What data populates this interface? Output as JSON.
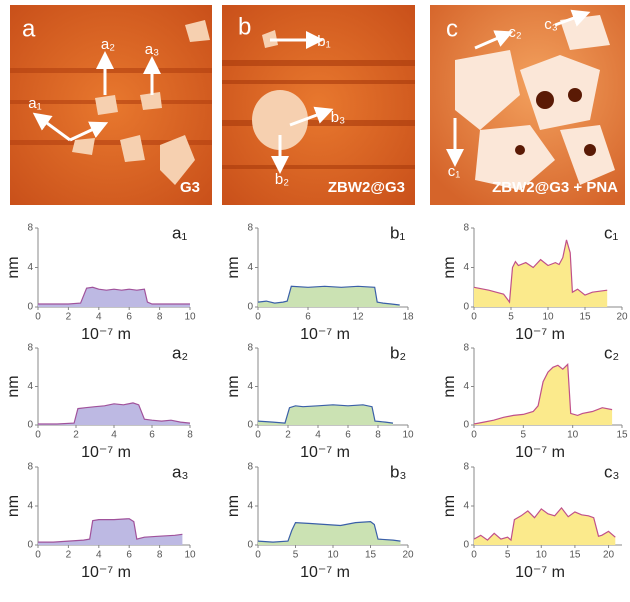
{
  "images": [
    {
      "panel": "a",
      "caption": "G3",
      "arrows": [
        "a₁",
        "a₂",
        "a₃"
      ]
    },
    {
      "panel": "b",
      "caption": "ZBW2@G3",
      "arrows": [
        "b₁",
        "b₂",
        "b₃"
      ]
    },
    {
      "panel": "c",
      "caption": "ZBW2@G3 + PNA",
      "arrows": [
        "c₁",
        "c₂",
        "c₃"
      ]
    }
  ],
  "chart_data": [
    {
      "type": "area",
      "title": "a₁",
      "xlabel": "10⁻⁷ m",
      "ylabel": "nm",
      "color": "#a0529b",
      "fill": "#bdb9e3",
      "x": [
        0,
        1,
        2,
        2.8,
        3.2,
        3.6,
        4,
        4.5,
        5,
        5.5,
        6,
        6.5,
        7,
        7.2,
        7.5,
        8,
        9,
        10
      ],
      "values": [
        0.3,
        0.3,
        0.3,
        0.4,
        1.9,
        2.0,
        1.8,
        1.7,
        1.8,
        1.7,
        1.8,
        1.7,
        1.8,
        0.5,
        0.3,
        0.3,
        0.3,
        0.3
      ],
      "xlim": [
        0,
        10
      ],
      "xticks": [
        0,
        2,
        4,
        6,
        8,
        10
      ],
      "ylim": [
        0,
        8
      ],
      "yticks": [
        0,
        4,
        8
      ]
    },
    {
      "type": "area",
      "title": "b₁",
      "xlabel": "10⁻⁷ m",
      "ylabel": "nm",
      "color": "#3a5fa8",
      "fill": "#cbe2b3",
      "x": [
        0,
        1,
        2,
        3,
        3.5,
        4,
        6,
        8,
        10,
        12,
        14,
        14.3,
        15,
        16,
        17
      ],
      "values": [
        0.5,
        0.6,
        0.4,
        0.5,
        0.6,
        2.1,
        2.0,
        2.1,
        2.0,
        2.1,
        2.0,
        0.5,
        0.4,
        0.3,
        0.2
      ],
      "xlim": [
        0,
        18
      ],
      "xticks": [
        0,
        6,
        12,
        18
      ],
      "ylim": [
        0,
        8
      ],
      "yticks": [
        0,
        4,
        8
      ]
    },
    {
      "type": "area",
      "title": "c₁",
      "xlabel": "10⁻⁷ m",
      "ylabel": "nm",
      "color": "#c0508a",
      "fill": "#fbea8c",
      "x": [
        0,
        2,
        3,
        4,
        4.8,
        5.2,
        5.6,
        6,
        7,
        8,
        9,
        10,
        11,
        11.5,
        12,
        12.5,
        13,
        13.3,
        14,
        15,
        16,
        17,
        18
      ],
      "values": [
        2.0,
        1.7,
        1.5,
        1.3,
        0.5,
        4.0,
        4.6,
        4.2,
        4.5,
        4.0,
        4.8,
        4.2,
        4.5,
        4.3,
        5.0,
        6.8,
        5.5,
        1.5,
        1.8,
        1.2,
        1.5,
        1.6,
        1.7
      ],
      "xlim": [
        0,
        20
      ],
      "xticks": [
        0,
        5,
        10,
        15,
        20
      ],
      "ylim": [
        0,
        8
      ],
      "yticks": [
        0,
        4,
        8
      ]
    },
    {
      "type": "area",
      "title": "a₂",
      "xlabel": "10⁻⁷ m",
      "ylabel": "nm",
      "color": "#a0529b",
      "fill": "#bdb9e3",
      "x": [
        0,
        1,
        1.9,
        2.1,
        2.5,
        3,
        3.5,
        4,
        4.5,
        5,
        5.3,
        5.6,
        6,
        6.5,
        7,
        7.5,
        8
      ],
      "values": [
        0.1,
        0.1,
        0.2,
        1.7,
        1.8,
        1.9,
        2.0,
        2.2,
        2.1,
        2.3,
        2.1,
        0.6,
        0.5,
        0.4,
        0.5,
        0.3,
        0.2
      ],
      "xlim": [
        0,
        8
      ],
      "xticks": [
        0,
        2,
        4,
        6,
        8
      ],
      "ylim": [
        0,
        8
      ],
      "yticks": [
        0,
        4,
        8
      ]
    },
    {
      "type": "area",
      "title": "b₂",
      "xlabel": "10⁻⁷ m",
      "ylabel": "nm",
      "color": "#3a5fa8",
      "fill": "#cbe2b3",
      "x": [
        0,
        1,
        1.8,
        2.1,
        2.5,
        3,
        4,
        5,
        6,
        7,
        7.6,
        7.8,
        8.5,
        9
      ],
      "values": [
        0.4,
        0.3,
        0.2,
        1.8,
        2.0,
        1.9,
        2.0,
        2.1,
        2.0,
        2.1,
        1.9,
        0.4,
        0.3,
        0.2
      ],
      "xlim": [
        0,
        10
      ],
      "xticks": [
        0,
        2,
        4,
        6,
        8,
        10
      ],
      "ylim": [
        0,
        8
      ],
      "yticks": [
        0,
        4,
        8
      ]
    },
    {
      "type": "area",
      "title": "c₂",
      "xlabel": "10⁻⁷ m",
      "ylabel": "nm",
      "color": "#c0508a",
      "fill": "#fbea8c",
      "x": [
        0,
        1,
        2,
        3,
        4,
        5,
        6,
        6.5,
        7,
        7.5,
        8,
        8.5,
        9,
        9.5,
        9.8,
        10.5,
        11,
        12,
        13,
        14
      ],
      "values": [
        0.1,
        0.3,
        0.5,
        0.8,
        1.0,
        1.1,
        1.4,
        2.0,
        4.5,
        5.5,
        6.0,
        6.2,
        5.8,
        6.3,
        1.2,
        1.0,
        1.2,
        1.4,
        1.8,
        1.6
      ],
      "xlim": [
        0,
        15
      ],
      "xticks": [
        0,
        5,
        10,
        15
      ],
      "ylim": [
        0,
        8
      ],
      "yticks": [
        0,
        4,
        8
      ]
    },
    {
      "type": "area",
      "title": "a₃",
      "xlabel": "10⁻⁷ m",
      "ylabel": "nm",
      "color": "#a0529b",
      "fill": "#bdb9e3",
      "x": [
        0,
        1,
        2,
        3,
        3.4,
        3.6,
        4,
        5,
        6,
        6.3,
        6.5,
        7,
        8,
        9,
        9.5
      ],
      "values": [
        0.3,
        0.3,
        0.4,
        0.5,
        0.6,
        2.5,
        2.6,
        2.6,
        2.7,
        2.4,
        0.6,
        0.8,
        0.9,
        1.0,
        1.1
      ],
      "xlim": [
        0,
        10
      ],
      "xticks": [
        0,
        2,
        4,
        6,
        8,
        10
      ],
      "ylim": [
        0,
        8
      ],
      "yticks": [
        0,
        4,
        8
      ]
    },
    {
      "type": "area",
      "title": "b₃",
      "xlabel": "10⁻⁷ m",
      "ylabel": "nm",
      "color": "#3a5fa8",
      "fill": "#cbe2b3",
      "x": [
        0,
        2,
        4,
        4.5,
        5,
        7,
        9,
        11,
        13,
        15,
        15.5,
        16,
        18,
        19
      ],
      "values": [
        0.4,
        0.3,
        0.4,
        1.5,
        2.3,
        2.2,
        2.1,
        2.0,
        2.3,
        2.4,
        2.1,
        0.6,
        0.5,
        0.4
      ],
      "xlim": [
        0,
        20
      ],
      "xticks": [
        0,
        5,
        10,
        15,
        20
      ],
      "ylim": [
        0,
        8
      ],
      "yticks": [
        0,
        4,
        8
      ]
    },
    {
      "type": "area",
      "title": "c₃",
      "xlabel": "10⁻⁷ m",
      "ylabel": "nm",
      "color": "#c0508a",
      "fill": "#fbea8c",
      "x": [
        0,
        1,
        2,
        3,
        4,
        5,
        5.5,
        6,
        7,
        8,
        9,
        10,
        11,
        12,
        13,
        14,
        15,
        16,
        17,
        17.8,
        18.5,
        19,
        20,
        21
      ],
      "values": [
        0.6,
        1.0,
        0.5,
        1.2,
        0.6,
        0.8,
        0.5,
        2.6,
        3.0,
        3.5,
        2.8,
        3.7,
        3.2,
        3.0,
        3.8,
        2.9,
        3.4,
        3.1,
        3.0,
        2.8,
        0.9,
        1.0,
        1.4,
        0.8
      ],
      "xlim": [
        0,
        22
      ],
      "xticks": [
        0,
        5,
        10,
        15,
        20
      ],
      "ylim": [
        0,
        8
      ],
      "yticks": [
        0,
        4,
        8
      ]
    }
  ]
}
